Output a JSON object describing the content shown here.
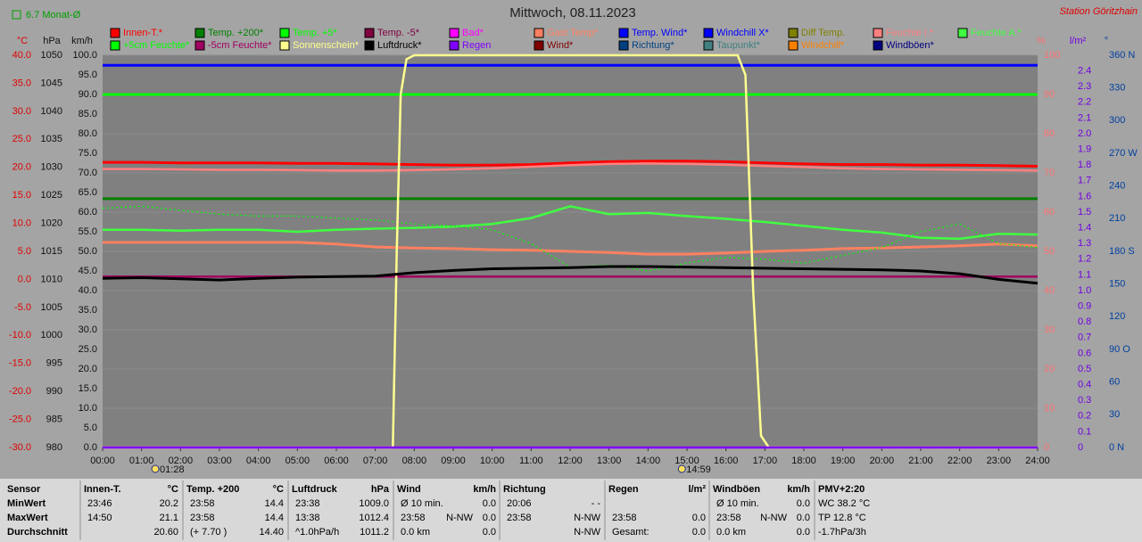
{
  "chart_data": {
    "type": "line",
    "title": "Mittwoch, 08.11.2023",
    "station": "Station Göritzhain",
    "monthly_note": "6.7 Monat-Ø",
    "xlim": [
      0,
      24
    ],
    "xticks": [
      {
        "value": 0,
        "label": "00:00"
      },
      {
        "value": 1,
        "label": "01:00"
      },
      {
        "value": 2,
        "label": "02:00"
      },
      {
        "value": 3,
        "label": "03:00"
      },
      {
        "value": 4,
        "label": "04:00"
      },
      {
        "value": 5,
        "label": "05:00"
      },
      {
        "value": 6,
        "label": "06:00"
      },
      {
        "value": 7,
        "label": "07:00"
      },
      {
        "value": 8,
        "label": "08:00"
      },
      {
        "value": 9,
        "label": "09:00"
      },
      {
        "value": 10,
        "label": "10:00"
      },
      {
        "value": 11,
        "label": "11:00"
      },
      {
        "value": 12,
        "label": "12:00"
      },
      {
        "value": 13,
        "label": "13:00"
      },
      {
        "value": 14,
        "label": "14:00"
      },
      {
        "value": 15,
        "label": "15:00"
      },
      {
        "value": 16,
        "label": "16:00"
      },
      {
        "value": 17,
        "label": "17:00"
      },
      {
        "value": 18,
        "label": "18:00"
      },
      {
        "value": 19,
        "label": "19:00"
      },
      {
        "value": 20,
        "label": "20:00"
      },
      {
        "value": 21,
        "label": "21:00"
      },
      {
        "value": 22,
        "label": "22:00"
      },
      {
        "value": 23,
        "label": "23:00"
      },
      {
        "value": 24,
        "label": "24:00"
      }
    ],
    "annotations": [
      {
        "x": 1.467,
        "label": "01:28"
      },
      {
        "x": 14.983,
        "label": "14:59"
      }
    ],
    "grid": true,
    "axes": [
      {
        "unit": "°C",
        "color": "#e00000",
        "lim": [
          -30,
          40
        ],
        "ticks": [
          {
            "value": 40,
            "label": "40.0"
          },
          {
            "value": 35,
            "label": "35.0"
          },
          {
            "value": 30,
            "label": "30.0"
          },
          {
            "value": 25,
            "label": "25.0"
          },
          {
            "value": 20,
            "label": "20.0"
          },
          {
            "value": 15,
            "label": "15.0"
          },
          {
            "value": 10,
            "label": "10.0"
          },
          {
            "value": 5,
            "label": "5.0"
          },
          {
            "value": 0,
            "label": "0.0"
          },
          {
            "value": -5,
            "label": "-5.0"
          },
          {
            "value": -10,
            "label": "-10.0"
          },
          {
            "value": -15,
            "label": "-15.0"
          },
          {
            "value": -20,
            "label": "-20.0"
          },
          {
            "value": -25,
            "label": "-25.0"
          },
          {
            "value": -30,
            "label": "-30.0"
          }
        ]
      },
      {
        "unit": "hPa",
        "color": "#101010",
        "lim": [
          980,
          1050
        ],
        "ticks": [
          1050,
          1045,
          1040,
          1035,
          1030,
          1025,
          1020,
          1015,
          1010,
          1005,
          1000,
          995,
          990,
          985,
          980
        ]
      },
      {
        "unit": "km/h",
        "color": "#101010",
        "lim": [
          0,
          100
        ],
        "ticks": [
          {
            "value": 100,
            "label": "100.0"
          },
          {
            "value": 95,
            "label": "95.0"
          },
          {
            "value": 90,
            "label": "90.0"
          },
          {
            "value": 85,
            "label": "85.0"
          },
          {
            "value": 80,
            "label": "80.0"
          },
          {
            "value": 75,
            "label": "75.0"
          },
          {
            "value": 70,
            "label": "70.0"
          },
          {
            "value": 65,
            "label": "65.0"
          },
          {
            "value": 60,
            "label": "60.0"
          },
          {
            "value": 55,
            "label": "55.0"
          },
          {
            "value": 50,
            "label": "50.0"
          },
          {
            "value": 45,
            "label": "45.0"
          },
          {
            "value": 40,
            "label": "40.0"
          },
          {
            "value": 35,
            "label": "35.0"
          },
          {
            "value": 30,
            "label": "30.0"
          },
          {
            "value": 25,
            "label": "25.0"
          },
          {
            "value": 20,
            "label": "20.0"
          },
          {
            "value": 15,
            "label": "15.0"
          },
          {
            "value": 10,
            "label": "10.0"
          },
          {
            "value": 5,
            "label": "5.0"
          },
          {
            "value": 0,
            "label": "0.0"
          }
        ]
      },
      {
        "unit": "%",
        "color": "#ff7070",
        "lim": [
          0,
          100
        ],
        "ticks": [
          100,
          90,
          80,
          70,
          60,
          50,
          40,
          30,
          20,
          10,
          0
        ]
      },
      {
        "unit": "l/m²",
        "color": "#7000e0",
        "lim": [
          0,
          2.5
        ],
        "ticks": [
          2.4,
          2.3,
          2.2,
          2.1,
          {
            "value": 2,
            "label": "2.0"
          },
          1.9,
          1.8,
          1.7,
          1.6,
          1.5,
          1.4,
          1.3,
          1.2,
          1.1,
          {
            "value": 1,
            "label": "1.0"
          },
          0.9,
          0.8,
          0.7,
          0.6,
          0.5,
          0.4,
          0.3,
          0.2,
          0.1,
          0
        ]
      },
      {
        "unit": "°",
        "color": "#0040a0",
        "lim": [
          0,
          360
        ],
        "ticks": [
          {
            "value": 360,
            "label": "360 N"
          },
          330,
          300,
          {
            "value": 270,
            "label": "270 W"
          },
          240,
          210,
          {
            "value": 180,
            "label": "180 S"
          },
          150,
          120,
          {
            "value": 90,
            "label": "90 O"
          },
          60,
          30,
          {
            "value": 0,
            "label": "0 N"
          }
        ]
      }
    ],
    "x": [
      0,
      1,
      2,
      3,
      4,
      5,
      6,
      7,
      8,
      9,
      10,
      11,
      12,
      13,
      14,
      15,
      16,
      17,
      18,
      19,
      20,
      21,
      22,
      23,
      24
    ],
    "series": [
      {
        "name": "Innen-T.*",
        "color": "#ff0000",
        "axis": 0,
        "x": [
          0,
          1,
          2,
          3,
          4,
          5,
          6,
          7,
          8,
          9,
          10,
          11,
          12,
          13,
          14,
          15,
          16,
          17,
          18,
          19,
          20,
          21,
          22,
          23,
          24
        ],
        "values": [
          20.9,
          20.9,
          20.8,
          20.8,
          20.8,
          20.7,
          20.7,
          20.6,
          20.5,
          20.4,
          20.4,
          20.5,
          20.8,
          21.0,
          21.1,
          21.1,
          21.0,
          20.8,
          20.6,
          20.5,
          20.5,
          20.4,
          20.4,
          20.3,
          20.2
        ]
      },
      {
        "name": "Temp. +200*",
        "color": "#008000",
        "axis": 0,
        "x": [
          0,
          24
        ],
        "values": [
          14.4,
          14.4
        ]
      },
      {
        "name": "Temp. +5*",
        "color": "#00ff00",
        "axis": 0,
        "x": [
          0,
          24
        ],
        "values": [
          33.0,
          33.0
        ]
      },
      {
        "name": "Temp. -5*",
        "color": "#800040"
      },
      {
        "name": "Bad*",
        "color": "#ff00ff"
      },
      {
        "name": "Gast Temp*",
        "color": "#ff8060",
        "axis": 0,
        "x": [
          0,
          1,
          2,
          3,
          4,
          5,
          6,
          7,
          8,
          9,
          10,
          11,
          12,
          13,
          14,
          15,
          16,
          17,
          18,
          19,
          20,
          21,
          22,
          23,
          24
        ],
        "values": [
          6.6,
          6.6,
          6.6,
          6.6,
          6.6,
          6.6,
          6.3,
          5.8,
          5.6,
          5.5,
          5.3,
          5.2,
          5.0,
          4.8,
          4.5,
          4.5,
          4.7,
          5.0,
          5.2,
          5.5,
          5.6,
          5.8,
          6.0,
          6.3,
          6.0
        ]
      },
      {
        "name": "Temp. Wind*",
        "color": "#0000ff"
      },
      {
        "name": "Windchill X*",
        "color": "#0000ff",
        "axis": 0,
        "x": [
          0,
          24
        ],
        "values": [
          38.2,
          38.2
        ]
      },
      {
        "name": "Diff Temp.",
        "color": "#808000"
      },
      {
        "name": "Feuchte I.*",
        "color": "#ff8080",
        "axis": 3,
        "x": [
          0,
          1,
          2,
          3,
          4,
          5,
          6,
          7,
          8,
          9,
          10,
          11,
          12,
          13,
          14,
          15,
          16,
          17,
          18,
          19,
          20,
          21,
          22,
          23,
          24
        ],
        "values": [
          71.0,
          71.0,
          70.9,
          70.8,
          70.8,
          70.7,
          70.6,
          70.6,
          70.7,
          70.9,
          71.2,
          71.6,
          72.0,
          72.3,
          72.4,
          72.3,
          72.1,
          71.8,
          71.5,
          71.2,
          71.0,
          70.9,
          70.8,
          70.7,
          70.6
        ]
      },
      {
        "name": "Feuchte A.*",
        "color": "#40ff40",
        "axis": 3,
        "x": [
          0,
          1,
          2,
          3,
          4,
          5,
          6,
          7,
          8,
          9,
          10,
          11,
          12,
          13,
          14,
          15,
          16,
          17,
          18,
          19,
          20,
          21,
          22,
          23,
          24
        ],
        "values": [
          55.5,
          55.5,
          55.3,
          55.5,
          55.5,
          55.0,
          55.5,
          55.8,
          56.0,
          56.3,
          57.0,
          58.5,
          61.5,
          59.5,
          59.8,
          59.0,
          58.3,
          57.5,
          56.5,
          55.5,
          54.8,
          53.5,
          53.2,
          54.5,
          54.3
        ]
      },
      {
        "name": "+5cm Feuchte*",
        "color": "#00ff00",
        "axis": 3,
        "x": [
          0,
          1,
          2,
          3,
          4,
          5,
          6,
          7,
          8,
          9,
          10,
          11,
          12,
          13,
          14,
          15,
          16,
          17,
          18,
          19,
          20,
          21,
          22,
          23,
          24
        ],
        "values": [
          61.0,
          61.5,
          60.5,
          59.5,
          59.0,
          59.0,
          58.5,
          58.0,
          57.0,
          56.5,
          55.5,
          52.0,
          46.0,
          46.5,
          45.0,
          47.0,
          48.5,
          48.0,
          47.0,
          49.0,
          51.0,
          55.0,
          57.0,
          52.0,
          51.0
        ]
      },
      {
        "name": "-5cm Feuchte*",
        "color": "#a00060",
        "axis": 3,
        "x": [
          0,
          24
        ],
        "values": [
          43.6,
          43.6
        ]
      },
      {
        "name": "Sonnenschein*",
        "color": "#ffff90",
        "axis": 3,
        "x": [
          0,
          7.45,
          7.55,
          7.65,
          7.8,
          8,
          16.3,
          16.5,
          16.7,
          16.9,
          17.1,
          24
        ],
        "values": [
          0,
          0,
          50,
          90,
          99,
          100,
          100,
          95,
          40,
          3,
          0,
          0
        ]
      },
      {
        "name": "Luftdruck*",
        "color": "#000000",
        "axis": 1,
        "x": [
          0,
          1,
          2,
          3,
          4,
          5,
          6,
          7,
          8,
          9,
          10,
          11,
          12,
          13,
          14,
          15,
          16,
          17,
          18,
          19,
          20,
          21,
          22,
          23,
          24
        ],
        "values": [
          1010.2,
          1010.3,
          1010.1,
          1009.9,
          1010.2,
          1010.4,
          1010.5,
          1010.6,
          1011.2,
          1011.6,
          1011.9,
          1012.0,
          1012.1,
          1012.3,
          1012.3,
          1012.2,
          1012.1,
          1012.0,
          1011.9,
          1011.8,
          1011.7,
          1011.5,
          1011.0,
          1010.0,
          1009.3
        ]
      },
      {
        "name": "Regen",
        "color": "#8000ff",
        "axis": 4,
        "x": [
          0,
          24
        ],
        "values": [
          0,
          0
        ]
      },
      {
        "name": "Wind*",
        "color": "#800000"
      },
      {
        "name": "Richtung*",
        "color": "#004080"
      },
      {
        "name": "Taupunkt*",
        "color": "#408080"
      },
      {
        "name": "Windchill*",
        "color": "#ff8000"
      },
      {
        "name": "Windböen*",
        "color": "#000080"
      }
    ],
    "stats": [
      {
        "header": [
          "Sensor"
        ],
        "rows": [
          [
            "MinWert"
          ],
          [
            "MaxWert"
          ],
          [
            "Durchschnitt"
          ]
        ]
      },
      {
        "header": [
          "Innen-T.",
          "°C"
        ],
        "rows": [
          [
            "23:46",
            "20.2"
          ],
          [
            "14:50",
            "21.1"
          ],
          [
            "20.60"
          ]
        ]
      },
      {
        "header": [
          "Temp. +200",
          "°C"
        ],
        "rows": [
          [
            "23:58",
            "14.4"
          ],
          [
            "23:58",
            "14.4"
          ],
          [
            "(+ 7.70 )",
            "14.40"
          ]
        ]
      },
      {
        "header": [
          "Luftdruck",
          "hPa"
        ],
        "rows": [
          [
            "23:38",
            "1009.0"
          ],
          [
            "13:38",
            "1012.4"
          ],
          [
            "^1.0hPa/h",
            "1011.2"
          ]
        ]
      },
      {
        "header": [
          "Wind",
          "km/h"
        ],
        "rows": [
          [
            "Ø 10 min.",
            "0.0"
          ],
          [
            "23:58",
            "N-NW",
            "0.0"
          ],
          [
            "0.0 km",
            "0.0"
          ]
        ]
      },
      {
        "header": [
          "Richtung"
        ],
        "rows": [
          [
            "20:06",
            "- -"
          ],
          [
            "23:58",
            "N-NW"
          ],
          [
            "N-NW"
          ]
        ]
      },
      {
        "header": [
          "Regen",
          "l/m²"
        ],
        "rows": [
          [],
          [
            "23:58",
            "0.0"
          ],
          [
            "Gesamt:",
            "0.0"
          ]
        ]
      },
      {
        "header": [
          "Windböen",
          "km/h"
        ],
        "rows": [
          [
            "Ø 10 min.",
            "0.0"
          ],
          [
            "23:58",
            "N-NW",
            "0.0"
          ],
          [
            "0.0 km",
            "0.0"
          ]
        ]
      },
      {
        "header": [
          "PMV+2:20"
        ],
        "rows": [
          [
            "WC 38.2 °C"
          ],
          [
            "TP 12.8 °C"
          ],
          [
            "-1.7hPa/3h"
          ]
        ]
      }
    ]
  }
}
